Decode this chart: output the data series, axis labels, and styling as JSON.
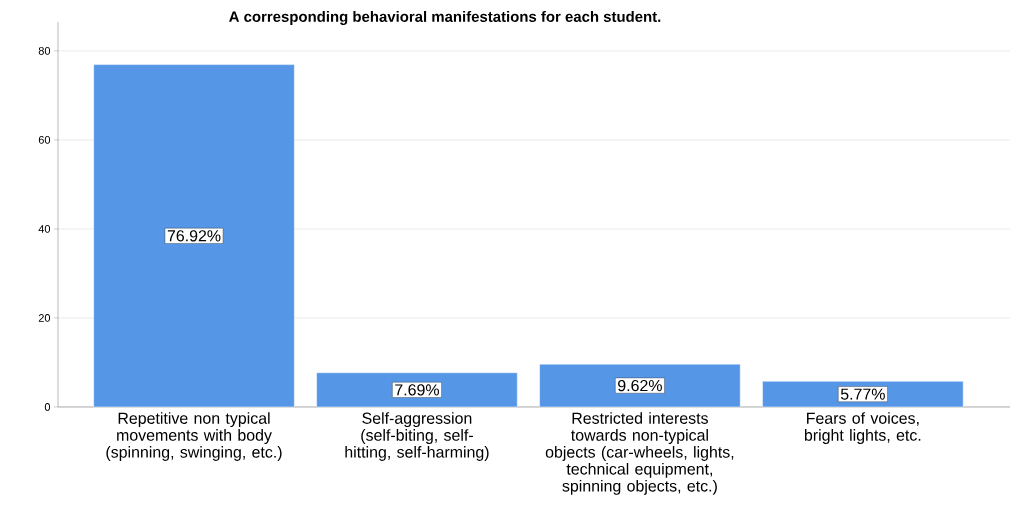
{
  "chart_data": {
    "type": "bar",
    "title": "A corresponding behavioral manifestations for each student.",
    "categories": [
      "Repetitive non typical movements with body (spinning, swinging, etc.)",
      "Self-aggression (self-biting, self-hitting, self-harming)",
      "Restricted interests towards non-typical objects (car-wheels, lights, technical equipment, spinning objects, etc.)",
      "Fears of voices, bright lights, etc."
    ],
    "values": [
      76.92,
      7.69,
      9.62,
      5.77
    ],
    "value_labels": [
      "76.92%",
      "7.69%",
      "9.62%",
      "5.77%"
    ],
    "color": "#5596e6",
    "ylim": [
      0,
      86.5
    ],
    "yticks": [
      0,
      20,
      40,
      60,
      80
    ],
    "grid": "y"
  }
}
